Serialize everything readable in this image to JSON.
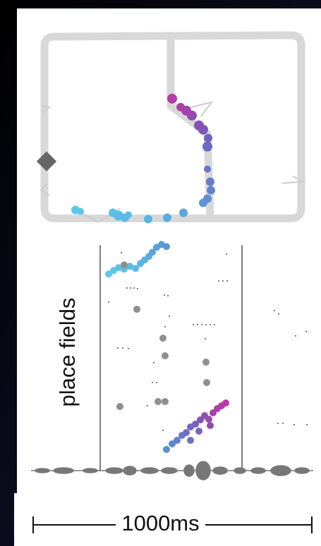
{
  "figure": {
    "ylabel": "place fields",
    "scale_bar_label": "1000ms"
  },
  "colors": {
    "background_dark": "#0d0f20",
    "track": "#d8d8d8",
    "marker": "#666666",
    "gray_dot": "#8f8f8f",
    "gradient_start": "#5ec6ea",
    "gradient_mid": "#6a5ec8",
    "gradient_end": "#c03aa8",
    "lfp": "#777777"
  }
}
